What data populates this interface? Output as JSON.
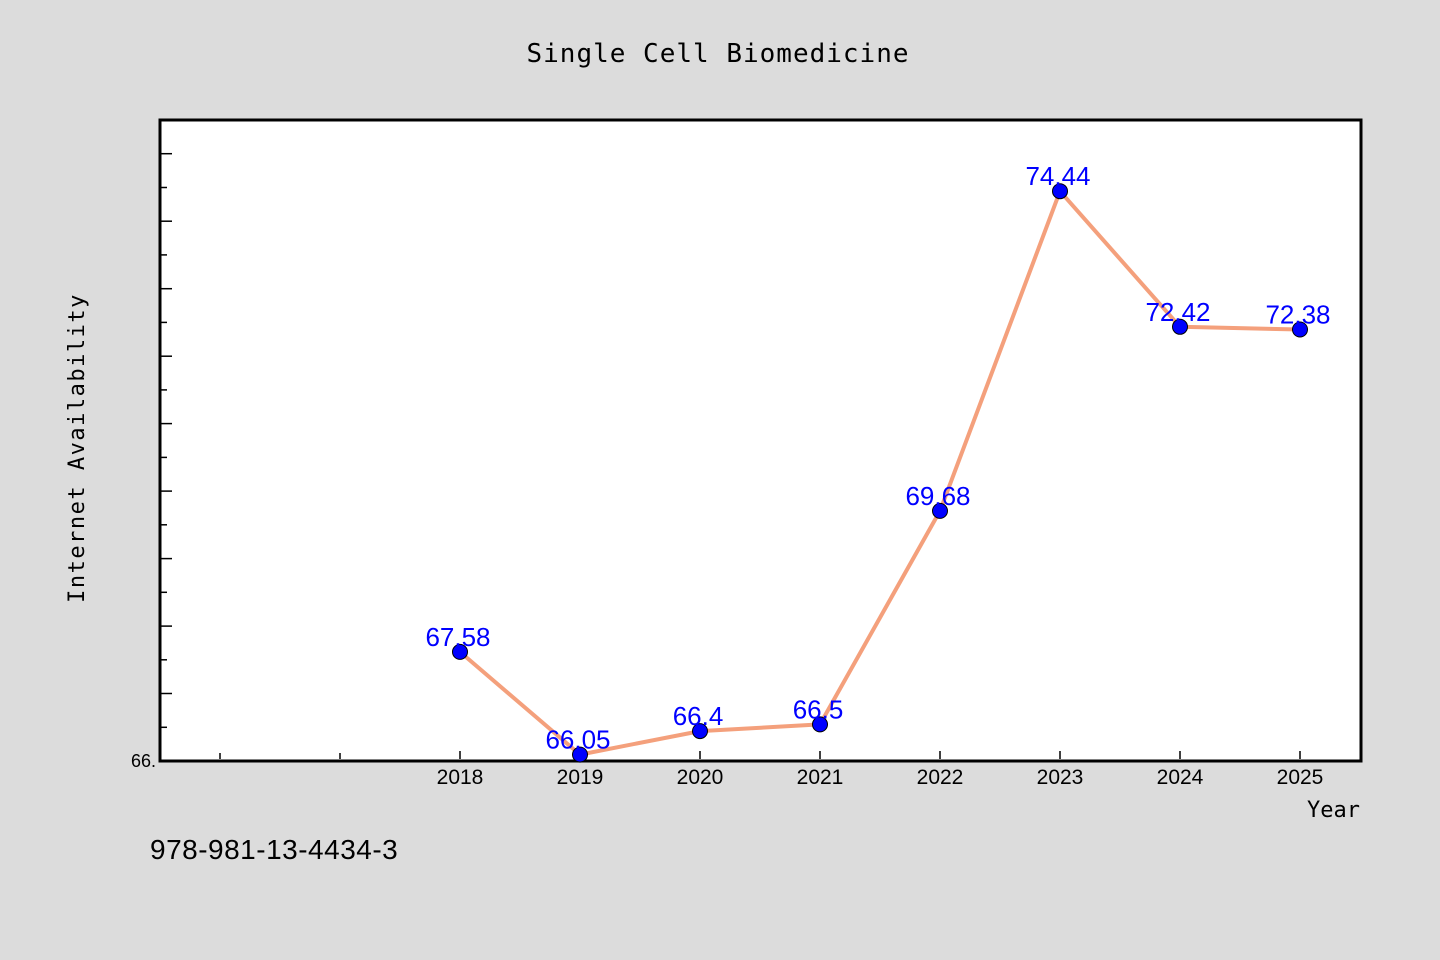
{
  "colors": {
    "background": "#dcdcdc",
    "plot_background": "#ffffff",
    "line": "#f4a07c",
    "marker": "#0000ff",
    "data_label": "#0000ff",
    "text": "#000000"
  },
  "footer": {
    "isbn": "978-981-13-4434-3"
  },
  "chart_data": {
    "type": "line",
    "title": "Single Cell Biomedicine",
    "xlabel": "Year",
    "ylabel": "Internet Availability",
    "y_tick_label": "66.",
    "categories": [
      "2018",
      "2019",
      "2020",
      "2021",
      "2022",
      "2023",
      "2024",
      "2025"
    ],
    "series": [
      {
        "values": [
          67.58,
          66.05,
          66.4,
          66.5,
          69.68,
          74.44,
          72.42,
          72.38
        ]
      }
    ],
    "data_labels": [
      "67.58",
      "66.05",
      "66.4",
      "66.5",
      "69.68",
      "74.44",
      "72.42",
      "72.38"
    ],
    "ylim": [
      66.0,
      75.5
    ],
    "grid": false,
    "legend": "none",
    "marker": "circle"
  }
}
